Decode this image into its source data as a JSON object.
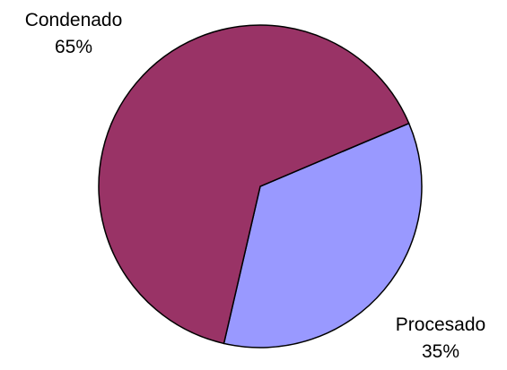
{
  "chart_data": {
    "type": "pie",
    "title": "",
    "categories": [
      "Condenado",
      "Procesado"
    ],
    "values": [
      65,
      35
    ],
    "value_labels": [
      "65%",
      "35%"
    ],
    "colors": [
      "#993366",
      "#9999FF"
    ],
    "edge_color": "#000000",
    "legend": "none"
  }
}
